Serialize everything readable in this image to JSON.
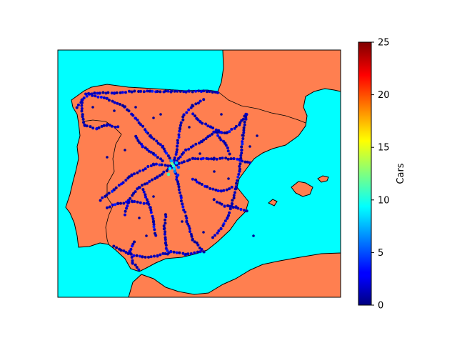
{
  "colors": {
    "sea": "#00ffff",
    "land": "#ff7f50",
    "coastline": "#000000",
    "border": "#000000"
  },
  "colorbar": {
    "label": "Cars",
    "min": 0,
    "max": 25,
    "ticks": [
      "0",
      "5",
      "10",
      "15",
      "20",
      "25"
    ],
    "colormap": "jet"
  },
  "chart_data": {
    "type": "scatter",
    "title": "",
    "xlabel": "",
    "ylabel": "",
    "color_variable": "Cars",
    "color_range": [
      0,
      25
    ],
    "note_markers": "points colored by car count, most values 0-3, hub around Madrid with values up to about 12"
  }
}
